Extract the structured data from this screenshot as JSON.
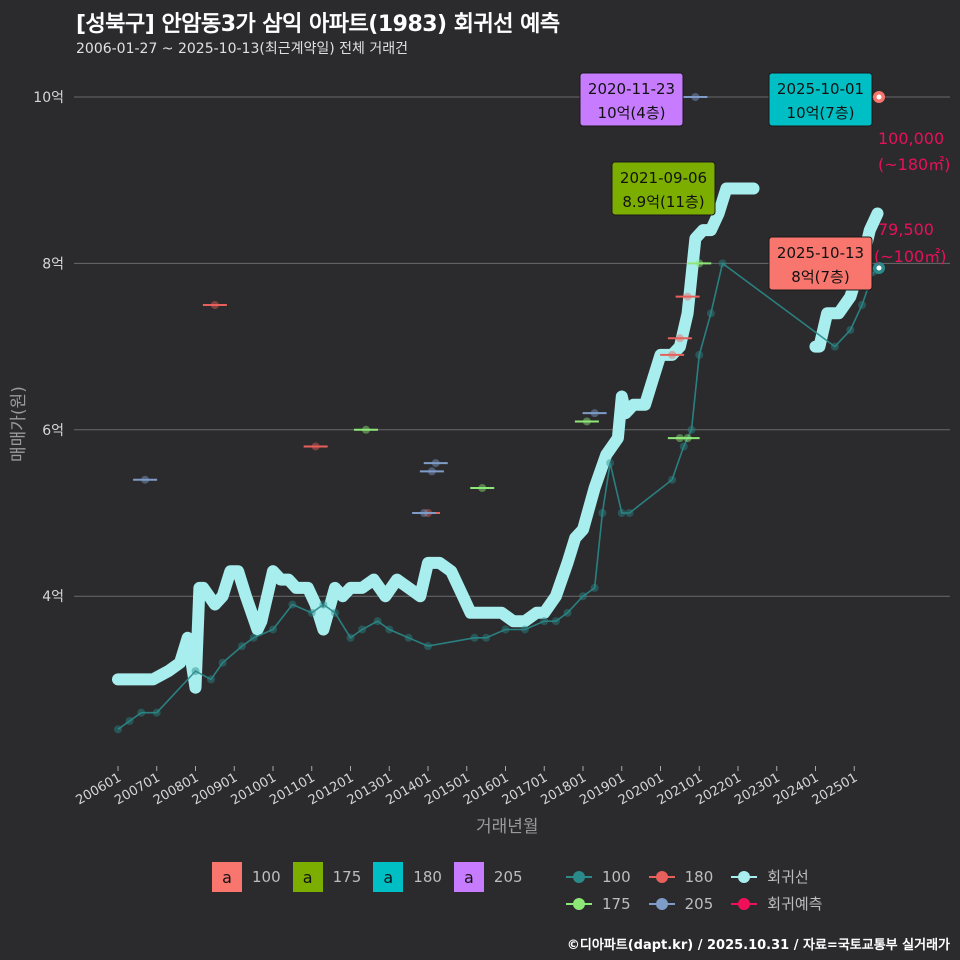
{
  "header": {
    "title": "[성북구] 안암동3가 삼익 아파트(1983) 회귀선 예측",
    "subtitle": "2006-01-27 ~ 2025-10-13(최근계약일) 전체 거래건"
  },
  "axes": {
    "ylabel": "매매가(원)",
    "xlabel": "거래년월",
    "yticks": [
      "10억",
      "8억",
      "6억",
      "4억"
    ],
    "xticks": [
      "200601",
      "200701",
      "200801",
      "200901",
      "201001",
      "201101",
      "201201",
      "201301",
      "201401",
      "201501",
      "201601",
      "201701",
      "201801",
      "201901",
      "202001",
      "202101",
      "202201",
      "202301",
      "202401",
      "202501"
    ]
  },
  "annotations": [
    {
      "date": "2020-11-23",
      "price": "10억(4층)",
      "color": "#c77cff"
    },
    {
      "date": "2025-10-01",
      "price": "10억(7층)",
      "color": "#00bfc4"
    },
    {
      "date": "2021-09-06",
      "price": "8.9억(11층)",
      "color": "#7cae00"
    },
    {
      "date": "2025-10-13",
      "price": "8억(7층)",
      "color": "#f8766d"
    }
  ],
  "predictions": [
    {
      "value": "100,000",
      "area": "(~180㎡)"
    },
    {
      "value": "79,500",
      "area": "(~100㎡)"
    }
  ],
  "legend_area": {
    "items": [
      {
        "glyph": "a",
        "label": "100",
        "color": "#f8766d"
      },
      {
        "glyph": "a",
        "label": "175",
        "color": "#7cae00"
      },
      {
        "glyph": "a",
        "label": "180",
        "color": "#00bfc4"
      },
      {
        "glyph": "a",
        "label": "205",
        "color": "#c77cff"
      }
    ]
  },
  "legend_series": {
    "items": [
      {
        "label": "100",
        "color": "#2a8a8a"
      },
      {
        "label": "180",
        "color": "#e8605c"
      },
      {
        "label": "회귀선",
        "color": "#a8eeee"
      },
      {
        "label": "175",
        "color": "#8ee878"
      },
      {
        "label": "205",
        "color": "#7f9cc8"
      },
      {
        "label": "회귀예측",
        "color": "#f0105a"
      }
    ]
  },
  "caption": "©디아파트(dapt.kr) / 2025.10.31 / 자료=국토교통부 실거래가",
  "chart_data": {
    "type": "line",
    "title": "[성북구] 안암동3가 삼익 아파트(1983) 회귀선 예측",
    "xlabel": "거래년월",
    "ylabel": "매매가(원)",
    "ylim": [
      2.0,
      10.4
    ],
    "y_unit": "억",
    "grid": true,
    "legend_position": "bottom",
    "series": [
      {
        "name": "회귀선",
        "x": [
          2006.0,
          2006.9,
          2007.3,
          2007.6,
          2007.8,
          2008.0,
          2008.1,
          2008.2,
          2008.5,
          2008.7,
          2008.9,
          2009.1,
          2009.3,
          2009.6,
          2009.7,
          2010.0,
          2010.2,
          2010.4,
          2010.6,
          2010.9,
          2011.1,
          2011.3,
          2011.6,
          2011.8,
          2012.0,
          2012.3,
          2012.6,
          2012.9,
          2013.2,
          2013.5,
          2013.8,
          2014.0,
          2014.3,
          2014.6,
          2014.9,
          2015.1,
          2015.3,
          2015.6,
          2015.9,
          2016.2,
          2016.5,
          2016.8,
          2017.0,
          2017.3,
          2017.6,
          2017.8,
          2018.0,
          2018.3,
          2018.6,
          2018.9,
          2019.0,
          2019.1,
          2019.3,
          2019.6,
          2019.8,
          2020.0,
          2020.3,
          2020.5,
          2020.7,
          2020.9,
          2021.1,
          2021.3,
          2021.5,
          2021.7,
          2021.8,
          2022.0,
          2022.4
        ],
        "values": [
          3.0,
          3.0,
          3.1,
          3.2,
          3.5,
          2.9,
          4.1,
          4.1,
          3.9,
          4.0,
          4.3,
          4.3,
          4.0,
          3.6,
          3.7,
          4.3,
          4.2,
          4.2,
          4.1,
          4.1,
          3.9,
          3.6,
          4.1,
          4.0,
          4.1,
          4.1,
          4.2,
          4.0,
          4.2,
          4.1,
          4.0,
          4.4,
          4.4,
          4.3,
          4.0,
          3.8,
          3.8,
          3.8,
          3.8,
          3.7,
          3.7,
          3.8,
          3.8,
          4.0,
          4.4,
          4.7,
          4.8,
          5.3,
          5.7,
          5.9,
          6.4,
          6.2,
          6.3,
          6.3,
          6.6,
          6.9,
          6.9,
          7.0,
          7.4,
          8.3,
          8.4,
          8.4,
          8.6,
          8.9,
          8.9,
          8.9,
          8.9
        ]
      },
      {
        "name": "회귀선 (2024~)",
        "x": [
          2024.0,
          2024.1,
          2024.3,
          2024.6,
          2024.9,
          2025.1,
          2025.3,
          2025.4,
          2025.6
        ],
        "values": [
          7.0,
          7.0,
          7.4,
          7.4,
          7.6,
          7.9,
          8.2,
          8.4,
          8.6
        ]
      },
      {
        "name": "100",
        "x": [
          2006.0,
          2006.3,
          2006.6,
          2007.0,
          2008.0,
          2008.4,
          2008.7,
          2009.2,
          2009.5,
          2010.0,
          2010.5,
          2011.0,
          2011.3,
          2011.6,
          2012.0,
          2012.3,
          2012.7,
          2013.0,
          2013.5,
          2014.0,
          2015.2,
          2015.5,
          2016.0,
          2016.5,
          2017.0,
          2017.3,
          2017.6,
          2018.0,
          2018.3,
          2018.5,
          2018.7,
          2019.0,
          2019.2,
          2020.3,
          2020.6,
          2020.8,
          2021.0,
          2021.3,
          2021.6,
          2024.5,
          2024.9,
          2025.2,
          2025.5
        ],
        "values": [
          2.4,
          2.5,
          2.6,
          2.6,
          3.1,
          3.0,
          3.2,
          3.4,
          3.5,
          3.6,
          3.9,
          3.8,
          3.9,
          3.8,
          3.5,
          3.6,
          3.7,
          3.6,
          3.5,
          3.4,
          3.5,
          3.5,
          3.6,
          3.6,
          3.7,
          3.7,
          3.8,
          4.0,
          4.1,
          5.0,
          5.6,
          5.0,
          5.0,
          5.4,
          5.8,
          6.0,
          6.9,
          7.4,
          8.0,
          7.0,
          7.2,
          7.5,
          7.9
        ]
      },
      {
        "name": "180",
        "x": [
          2008.5,
          2011.1,
          2014.0,
          2020.3,
          2020.5,
          2020.7
        ],
        "values": [
          7.5,
          5.8,
          5.0,
          6.9,
          7.1,
          7.6
        ]
      },
      {
        "name": "175",
        "x": [
          2012.4,
          2015.4,
          2018.1,
          2020.5,
          2020.7,
          2021.0
        ],
        "values": [
          6.0,
          5.3,
          6.1,
          5.9,
          5.9,
          8.0
        ]
      },
      {
        "name": "205",
        "x": [
          2006.7,
          2013.9,
          2014.1,
          2014.2,
          2018.3,
          2020.9
        ],
        "values": [
          5.4,
          5.0,
          5.5,
          5.6,
          6.2,
          10.0
        ]
      }
    ],
    "highlighted_points": [
      {
        "date": "2020-11-23",
        "value": 10.0,
        "floor": 4,
        "area": "205"
      },
      {
        "date": "2025-10-01",
        "value": 10.0,
        "floor": 7,
        "area": "180"
      },
      {
        "date": "2021-09-06",
        "value": 8.9,
        "floor": 11,
        "area": "175"
      },
      {
        "date": "2025-10-13",
        "value": 8.0,
        "floor": 7,
        "area": "100"
      }
    ],
    "predictions": [
      {
        "area": "~180㎡",
        "value": 100000,
        "unit": "만원"
      },
      {
        "area": "~100㎡",
        "value": 79500,
        "unit": "만원"
      }
    ]
  }
}
